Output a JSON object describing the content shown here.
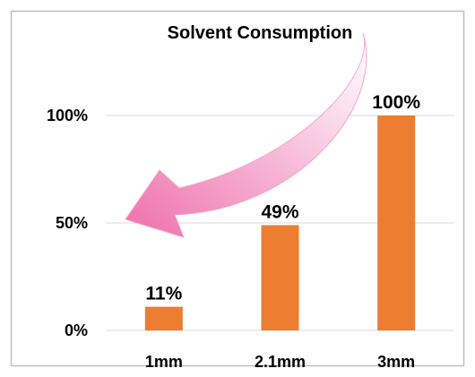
{
  "chart_data": {
    "type": "bar",
    "title": "Solvent Consumption",
    "categories": [
      "1mm",
      "2.1mm",
      "3mm"
    ],
    "values": [
      11,
      49,
      100
    ],
    "data_labels": [
      "11%",
      "49%",
      "100%"
    ],
    "y_ticks": [
      {
        "value": 0,
        "label": "0%"
      },
      {
        "value": 50,
        "label": "50%"
      },
      {
        "value": 100,
        "label": "100%"
      }
    ],
    "ylim": [
      0,
      100
    ],
    "grid": true,
    "legend": "none",
    "bar_color": "#ed7d31",
    "grid_color": "#d9d9d9",
    "border_color": "#bfbfbf",
    "annotation": {
      "type": "arrow",
      "color": "#f06aa8",
      "direction": "down-left"
    }
  }
}
